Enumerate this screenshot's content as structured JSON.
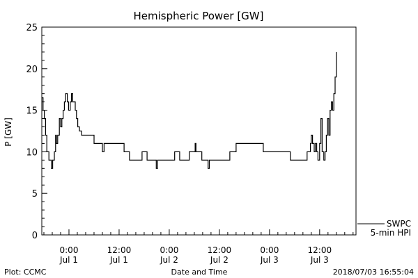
{
  "page": {
    "plot_credit": "Plot: CCMC",
    "timestamp": "2018/07/03 16:55:04"
  },
  "chart_data": {
    "type": "line",
    "title": "Hemispheric Power [GW]",
    "xlabel": "Date and Time",
    "ylabel": "P [GW]",
    "ylim": [
      0,
      25
    ],
    "xlim": [
      -6.5,
      68.7
    ],
    "x_unit": "hours since 2018-07-01 00:00",
    "yticks": [
      0,
      5,
      10,
      15,
      20,
      25
    ],
    "xticks": [
      {
        "x": 0,
        "time": "0:00",
        "date": "Jul 1"
      },
      {
        "x": 12,
        "time": "12:00",
        "date": "Jul 1"
      },
      {
        "x": 24,
        "time": "0:00",
        "date": "Jul 2"
      },
      {
        "x": 36,
        "time": "12:00",
        "date": "Jul 2"
      },
      {
        "x": 48,
        "time": "0:00",
        "date": "Jul 3"
      },
      {
        "x": 60,
        "time": "12:00",
        "date": "Jul 3"
      }
    ],
    "grid": false,
    "legend_position": "bottom-right outside",
    "series": [
      {
        "name": "SWPC 5-min HPI",
        "color": "#000000",
        "points": [
          [
            -6.5,
            16.5
          ],
          [
            -6.2,
            15
          ],
          [
            -5.9,
            14
          ],
          [
            -5.6,
            12
          ],
          [
            -5.3,
            10
          ],
          [
            -5.0,
            10
          ],
          [
            -4.8,
            9
          ],
          [
            -4.4,
            9
          ],
          [
            -4.2,
            8
          ],
          [
            -3.9,
            9
          ],
          [
            -3.5,
            10
          ],
          [
            -3.2,
            12
          ],
          [
            -3.0,
            11
          ],
          [
            -2.7,
            12
          ],
          [
            -2.3,
            14
          ],
          [
            -2.0,
            13
          ],
          [
            -1.7,
            14
          ],
          [
            -1.4,
            15
          ],
          [
            -1.1,
            16
          ],
          [
            -0.8,
            17
          ],
          [
            -0.4,
            16
          ],
          [
            -0.1,
            15
          ],
          [
            0.3,
            16
          ],
          [
            0.6,
            17
          ],
          [
            0.9,
            16
          ],
          [
            1.2,
            16
          ],
          [
            1.5,
            15
          ],
          [
            1.8,
            14
          ],
          [
            2.1,
            13
          ],
          [
            2.5,
            12.5
          ],
          [
            3.0,
            12
          ],
          [
            4.0,
            12
          ],
          [
            5.0,
            12
          ],
          [
            6.0,
            11
          ],
          [
            7.0,
            11
          ],
          [
            8.0,
            10
          ],
          [
            8.4,
            11
          ],
          [
            9.0,
            11
          ],
          [
            11.0,
            11
          ],
          [
            12.0,
            11
          ],
          [
            13.2,
            10
          ],
          [
            14.0,
            10
          ],
          [
            14.5,
            9
          ],
          [
            17.0,
            9
          ],
          [
            17.5,
            10
          ],
          [
            18.3,
            10
          ],
          [
            18.7,
            9
          ],
          [
            20.5,
            9
          ],
          [
            20.9,
            8
          ],
          [
            21.2,
            9
          ],
          [
            24.0,
            9
          ],
          [
            25.0,
            9
          ],
          [
            25.3,
            10
          ],
          [
            26.2,
            10
          ],
          [
            26.5,
            9
          ],
          [
            28.5,
            9
          ],
          [
            28.8,
            10
          ],
          [
            30.0,
            10
          ],
          [
            30.2,
            11
          ],
          [
            30.4,
            10
          ],
          [
            31.5,
            10
          ],
          [
            31.8,
            9
          ],
          [
            33.0,
            9
          ],
          [
            33.3,
            8
          ],
          [
            33.6,
            9
          ],
          [
            38.0,
            9
          ],
          [
            38.5,
            10
          ],
          [
            39.5,
            10
          ],
          [
            40.0,
            11
          ],
          [
            45.0,
            11
          ],
          [
            46.0,
            11
          ],
          [
            46.5,
            10
          ],
          [
            52.0,
            10
          ],
          [
            53.0,
            9
          ],
          [
            56.5,
            9
          ],
          [
            57.0,
            10
          ],
          [
            57.5,
            10
          ],
          [
            57.8,
            11
          ],
          [
            58.0,
            12
          ],
          [
            58.3,
            11
          ],
          [
            58.7,
            10
          ],
          [
            59.0,
            11
          ],
          [
            59.3,
            10
          ],
          [
            59.6,
            9
          ],
          [
            60.0,
            11
          ],
          [
            60.3,
            14
          ],
          [
            60.6,
            10
          ],
          [
            61.0,
            9
          ],
          [
            61.3,
            10
          ],
          [
            61.6,
            12
          ],
          [
            61.9,
            14
          ],
          [
            62.2,
            12
          ],
          [
            62.5,
            15
          ],
          [
            62.8,
            16
          ],
          [
            63.1,
            15
          ],
          [
            63.4,
            17
          ],
          [
            63.7,
            19
          ],
          [
            64.0,
            22
          ]
        ]
      }
    ]
  }
}
